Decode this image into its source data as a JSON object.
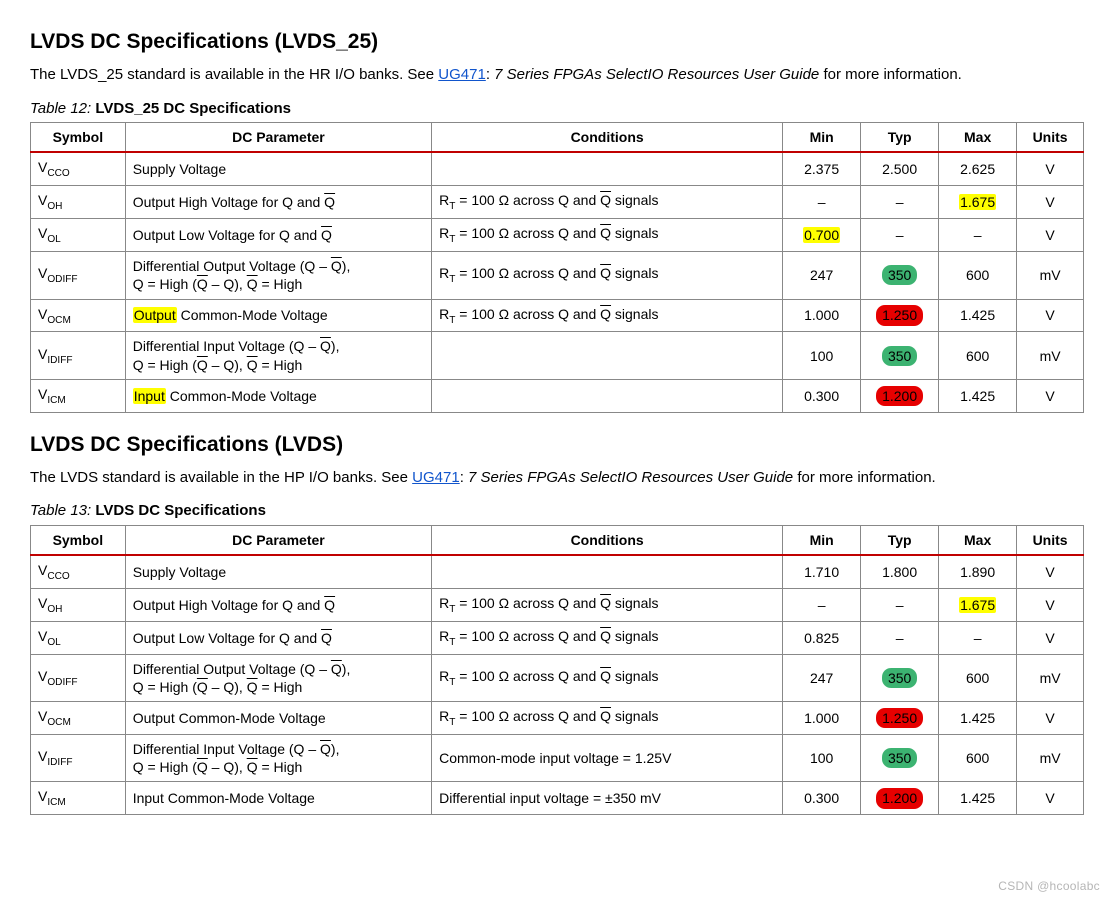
{
  "colors": {
    "header_rule": "#c00000",
    "cell_border": "#888888",
    "link": "#1155cc",
    "hl_yellow": "#ffff00",
    "hl_green": "#3cb371",
    "hl_red": "#e60000",
    "background": "#ffffff",
    "text": "#000000"
  },
  "watermark": "CSDN @hcoolabc",
  "sections": [
    {
      "heading": "LVDS DC Specifications (LVDS_25)",
      "intro_pre": "The LVDS_25 standard is available in the HR I/O banks. See ",
      "intro_link": "UG471",
      "intro_mid": ": ",
      "intro_em": "7 Series FPGAs SelectIO Resources User Guide ",
      "intro_post": "for more information.",
      "caption_tbl": "Table  12:",
      "caption_title": "LVDS_25 DC Specifications",
      "headers": [
        "Symbol",
        "DC Parameter",
        "Conditions",
        "Min",
        "Typ",
        "Max",
        "Units"
      ],
      "rows": [
        {
          "sym": "V<sub>CCO</sub>",
          "param": "Supply Voltage",
          "cond": "",
          "min": "2.375",
          "typ": "2.500",
          "max": "2.625",
          "units": "V"
        },
        {
          "sym": "V<sub>OH</sub>",
          "param": "Output High Voltage for Q and <span class='ovl'>Q</span>",
          "cond": "R<sub>T</sub> = 100 Ω across Q and <span class='ovl'>Q</span> signals",
          "min": "–",
          "typ": "–",
          "max": "<span class='hl-yellow'>1.675</span>",
          "units": "V"
        },
        {
          "sym": "V<sub>OL</sub>",
          "param": "Output Low Voltage for Q and <span class='ovl'>Q</span>",
          "cond": "R<sub>T</sub> = 100 Ω across Q and <span class='ovl'>Q</span> signals",
          "min": "<span class='hl-yellow'>0.700</span>",
          "typ": "–",
          "max": "–",
          "units": "V"
        },
        {
          "sym": "V<sub>ODIFF</sub>",
          "param": "Differential Output Voltage (Q – <span class='ovl'>Q</span>),<br>Q = High (<span class='ovl'>Q</span> – Q), <span class='ovl'>Q</span> = High",
          "cond": "R<sub>T</sub> = 100 Ω across Q and <span class='ovl'>Q</span> signals",
          "min": "247",
          "typ": "<span class='hl-green'>350</span>",
          "max": "600",
          "units": "mV"
        },
        {
          "sym": "V<sub>OCM</sub>",
          "param": "<span class='hl-yellow'>Output</span> Common-Mode Voltage",
          "cond": "R<sub>T</sub> = 100 Ω across Q and <span class='ovl'>Q</span> signals",
          "min": "1.000",
          "typ": "<span class='hl-red'>1.250</span>",
          "max": "1.425",
          "units": "V"
        },
        {
          "sym": "V<sub>IDIFF</sub>",
          "param": "Differential Input Voltage (Q – <span class='ovl'>Q</span>),<br>Q = High (<span class='ovl'>Q</span> – Q), <span class='ovl'>Q</span> = High",
          "cond": "",
          "min": "100",
          "typ": "<span class='hl-green'>350</span>",
          "max": "600",
          "units": "mV"
        },
        {
          "sym": "V<sub>ICM</sub>",
          "param": "<span class='hl-yellow'>Input</span> Common-Mode Voltage",
          "cond": "",
          "min": "0.300",
          "typ": "<span class='hl-red'>1.200</span>",
          "max": "1.425",
          "units": "V"
        }
      ]
    },
    {
      "heading": "LVDS DC Specifications (LVDS)",
      "intro_pre": "The LVDS standard is available in the HP I/O banks. See ",
      "intro_link": "UG471",
      "intro_mid": ": ",
      "intro_em": "7 Series FPGAs SelectIO Resources User Guide ",
      "intro_post": "for more information.",
      "caption_tbl": "Table  13:",
      "caption_title": "LVDS DC Specifications",
      "headers": [
        "Symbol",
        "DC Parameter",
        "Conditions",
        "Min",
        "Typ",
        "Max",
        "Units"
      ],
      "rows": [
        {
          "sym": "V<sub>CCO</sub>",
          "param": "Supply Voltage",
          "cond": "",
          "min": "1.710",
          "typ": "1.800",
          "max": "1.890",
          "units": "V"
        },
        {
          "sym": "V<sub>OH</sub>",
          "param": "Output High Voltage for Q and <span class='ovl'>Q</span>",
          "cond": "R<sub>T</sub> = 100 Ω across Q and <span class='ovl'>Q</span> signals",
          "min": "–",
          "typ": "–",
          "max": "<span class='hl-yellow'>1.675</span>",
          "units": "V"
        },
        {
          "sym": "V<sub>OL</sub>",
          "param": "Output Low Voltage for Q and <span class='ovl'>Q</span>",
          "cond": "R<sub>T</sub> = 100 Ω across Q and <span class='ovl'>Q</span> signals",
          "min": "0.825",
          "typ": "–",
          "max": "–",
          "units": "V"
        },
        {
          "sym": "V<sub>ODIFF</sub>",
          "param": "Differential Output Voltage (Q – <span class='ovl'>Q</span>),<br>Q = High (<span class='ovl'>Q</span> – Q), <span class='ovl'>Q</span> = High",
          "cond": "R<sub>T</sub> = 100 Ω across Q and <span class='ovl'>Q</span> signals",
          "min": "247",
          "typ": "<span class='hl-green'>350</span>",
          "max": "600",
          "units": "mV"
        },
        {
          "sym": "V<sub>OCM</sub>",
          "param": "Output Common-Mode Voltage",
          "cond": "R<sub>T</sub> = 100 Ω across Q and <span class='ovl'>Q</span> signals",
          "min": "1.000",
          "typ": "<span class='hl-red'>1.250</span>",
          "max": "1.425",
          "units": "V"
        },
        {
          "sym": "V<sub>IDIFF</sub>",
          "param": "Differential Input Voltage (Q – <span class='ovl'>Q</span>),<br>Q = High (<span class='ovl'>Q</span> – Q), <span class='ovl'>Q</span> = High",
          "cond": "Common-mode input voltage = 1.25V",
          "min": "100",
          "typ": "<span class='hl-green'>350</span>",
          "max": "600",
          "units": "mV"
        },
        {
          "sym": "V<sub>ICM</sub>",
          "param": "Input Common-Mode Voltage",
          "cond": "Differential input voltage = ±350 mV",
          "min": "0.300",
          "typ": "<span class='hl-red'>1.200</span>",
          "max": "1.425",
          "units": "V"
        }
      ]
    }
  ]
}
